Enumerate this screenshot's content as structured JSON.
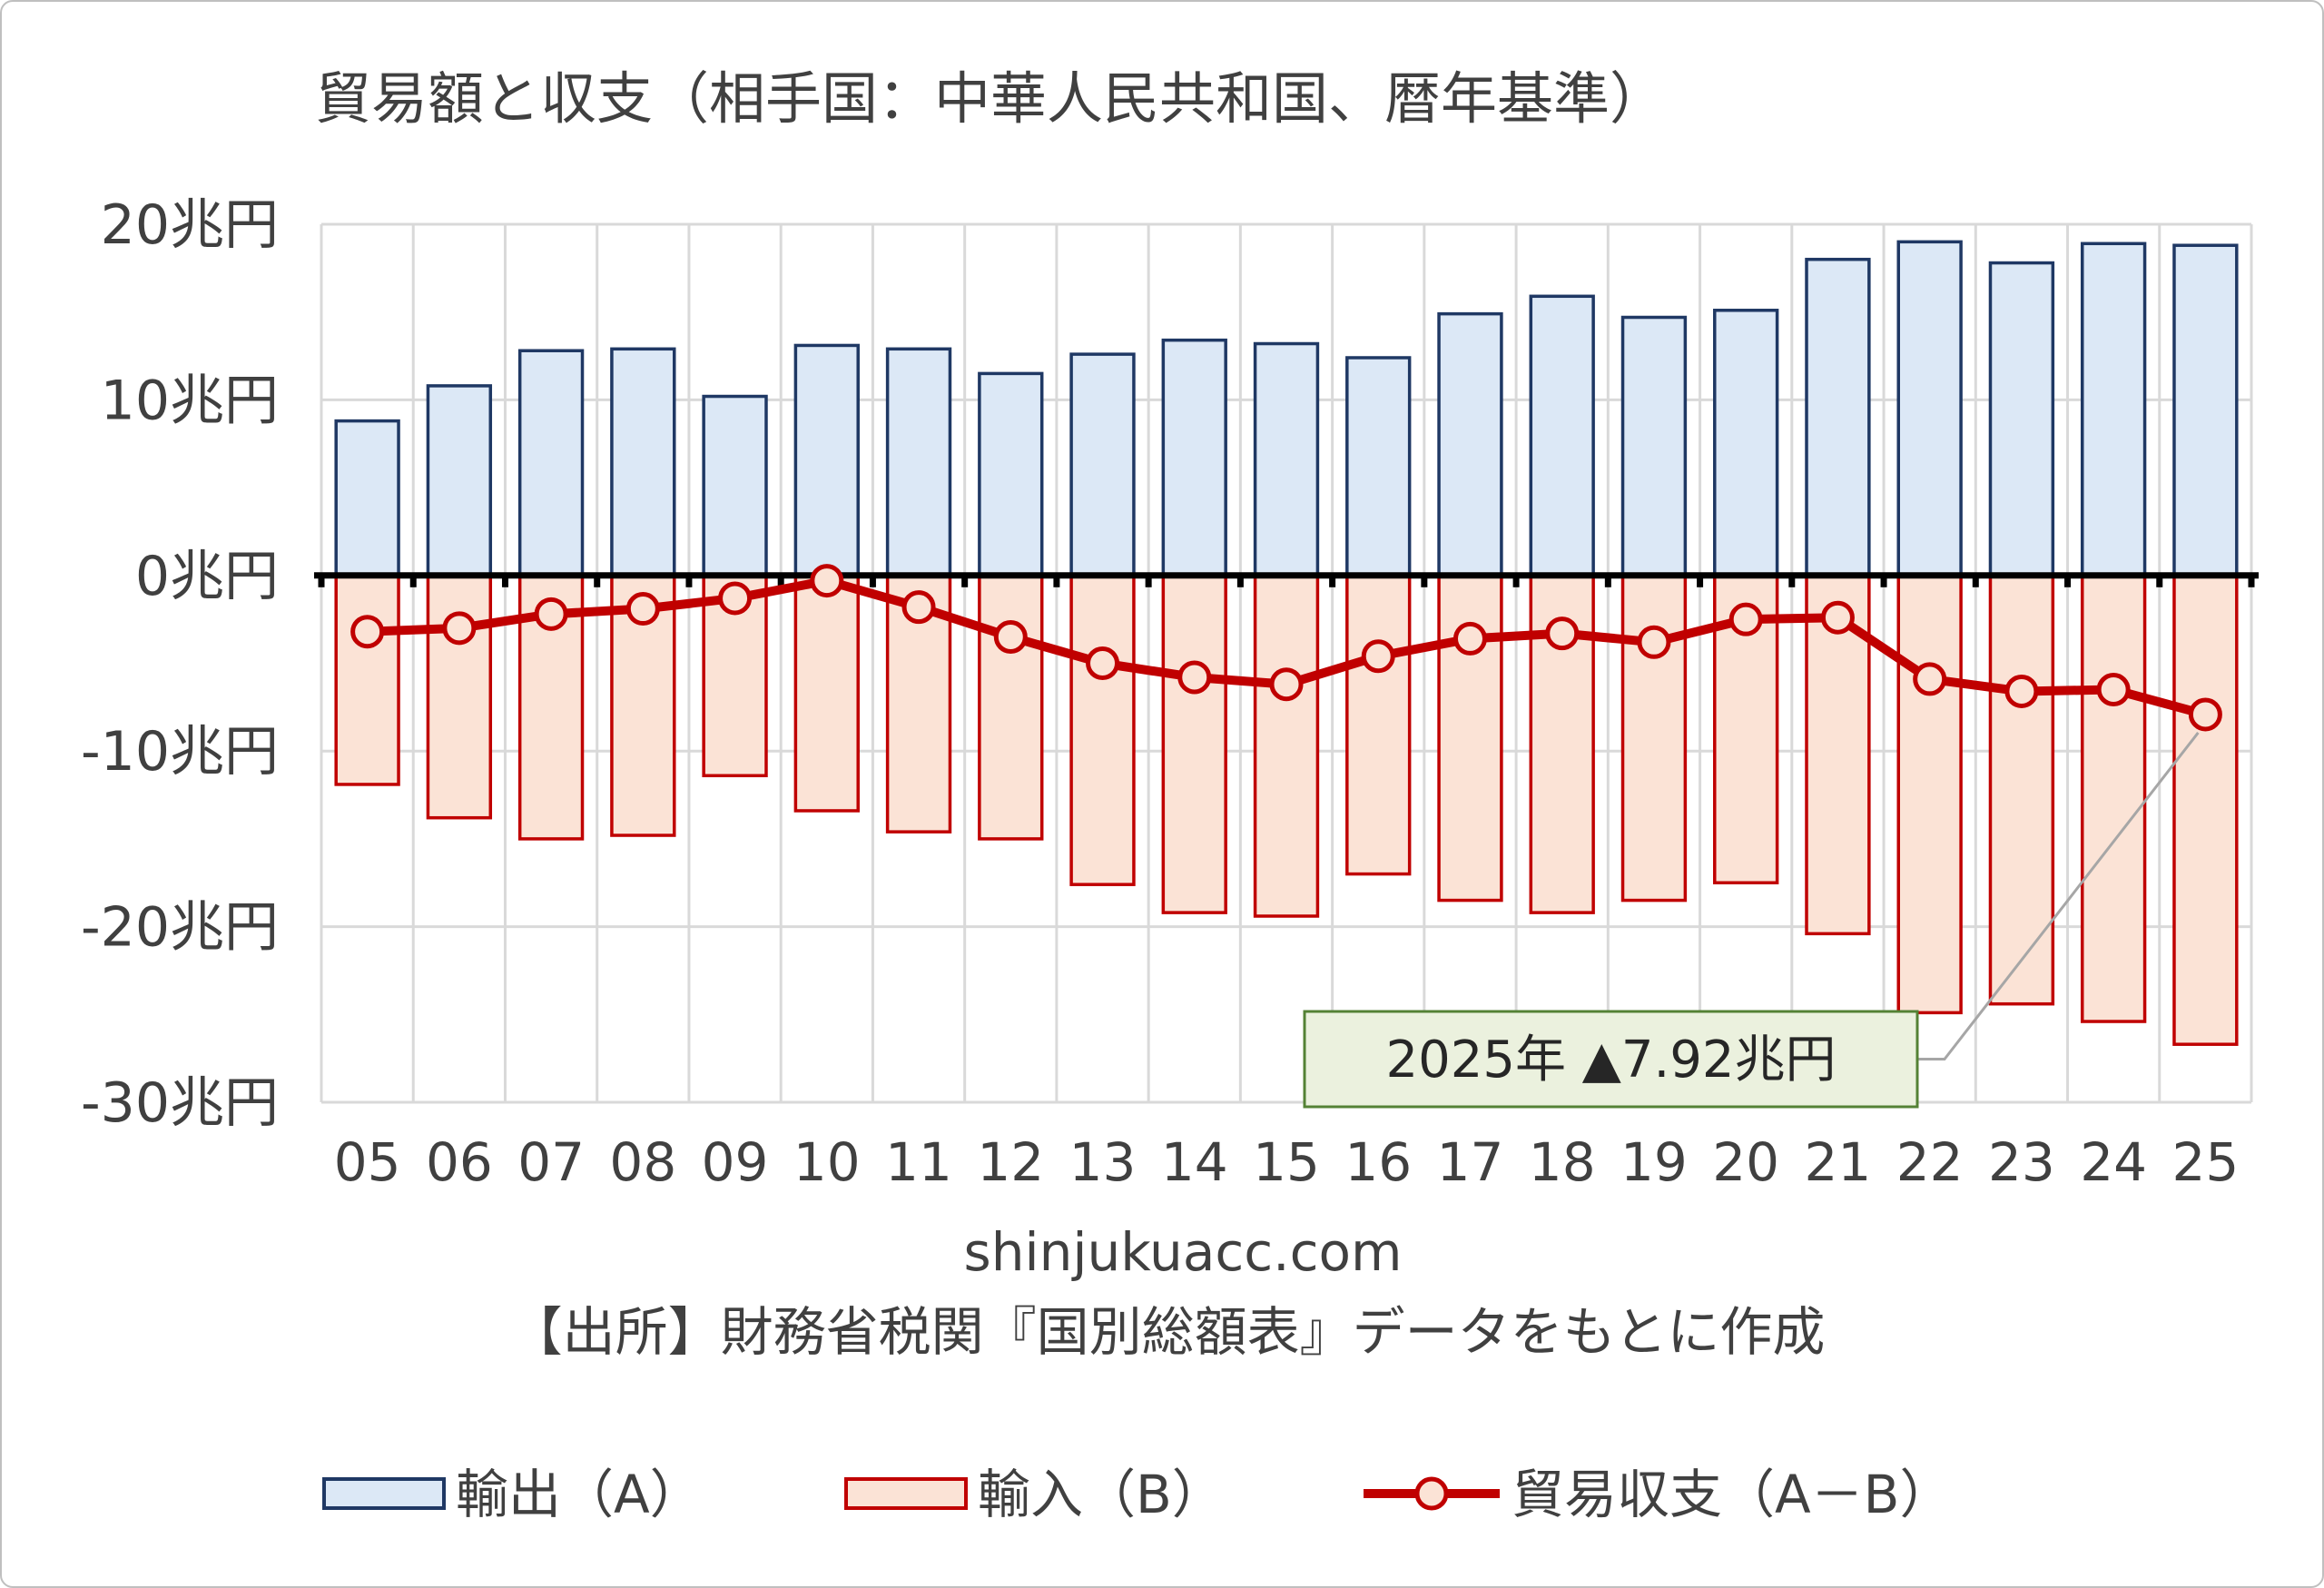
{
  "chart_data": {
    "type": "bar",
    "title": "貿易額と収支（相手国：中華人民共和国、暦年基準）",
    "categories": [
      "05",
      "06",
      "07",
      "08",
      "09",
      "10",
      "11",
      "12",
      "13",
      "14",
      "15",
      "16",
      "17",
      "18",
      "19",
      "20",
      "21",
      "22",
      "23",
      "24",
      "25"
    ],
    "series": [
      {
        "name": "輸出（A）",
        "type": "bar",
        "values": [
          8.8,
          10.8,
          12.8,
          12.9,
          10.2,
          13.1,
          12.9,
          11.5,
          12.6,
          13.4,
          13.2,
          12.4,
          14.9,
          15.9,
          14.7,
          15.1,
          18.0,
          19.0,
          17.8,
          18.9,
          18.8
        ],
        "fill": "#dce8f6",
        "stroke": "#1f3864"
      },
      {
        "name": "輸入（B）",
        "type": "bar",
        "values": [
          -11.9,
          -13.8,
          -15.0,
          -14.8,
          -11.4,
          -13.4,
          -14.6,
          -15.0,
          -17.6,
          -19.2,
          -19.4,
          -17.0,
          -18.5,
          -19.2,
          -18.5,
          -17.5,
          -20.4,
          -24.9,
          -24.4,
          -25.4,
          -26.7
        ],
        "fill": "#fbe3d6",
        "stroke": "#c00000"
      },
      {
        "name": "貿易収支（A－B）",
        "type": "line",
        "values": [
          -3.2,
          -3.0,
          -2.2,
          -1.9,
          -1.3,
          -0.3,
          -1.8,
          -3.5,
          -5.0,
          -5.8,
          -6.2,
          -4.6,
          -3.6,
          -3.3,
          -3.8,
          -2.5,
          -2.4,
          -5.9,
          -6.6,
          -6.5,
          -7.92
        ],
        "color": "#c00000",
        "marker_fill": "#fbe3d6"
      }
    ],
    "y_ticks": [
      "20兆円",
      "10兆円",
      "0兆円",
      "-10兆円",
      "-20兆円",
      "-30兆円"
    ],
    "ylim": [
      -30,
      20
    ],
    "grid": true,
    "legend_position": "bottom",
    "annotation": {
      "text": "2025年 ▲7.92兆円",
      "category": "25",
      "fill": "#ebf1de",
      "stroke": "#548235"
    },
    "notes": [
      "shinjukuacc.com",
      "【出所】財務省税関『国別総額表』データをもとに作成"
    ]
  }
}
